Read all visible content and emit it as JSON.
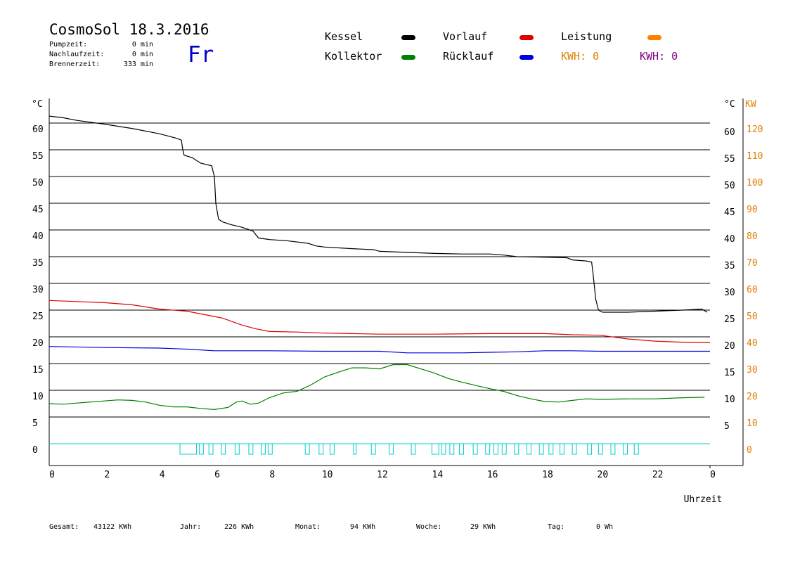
{
  "header": {
    "title": "CosmoSol 18.3.2016",
    "day": "Fr",
    "stats": [
      {
        "label": "Pumpzeit:",
        "value": "0 min"
      },
      {
        "label": "Nachlaufzeit:",
        "value": "0 min"
      },
      {
        "label": "Brennerzeit:",
        "value": "333 min"
      }
    ]
  },
  "legend": {
    "kessel": {
      "label": "Kessel",
      "color": "#000000"
    },
    "kollektor": {
      "label": "Kollektor",
      "color": "#008000"
    },
    "vorlauf": {
      "label": "Vorlauf",
      "color": "#dd0000"
    },
    "ruecklauf": {
      "label": "Rücklauf",
      "color": "#0000dd"
    },
    "leistung": {
      "label": "Leistung",
      "color": "#ff8000"
    },
    "kwh1": {
      "label": "KWH: 0",
      "color": "#e08000"
    },
    "kwh2": {
      "label": "KWH: 0",
      "color": "#800080"
    }
  },
  "footer": [
    {
      "label": "Gesamt:",
      "value": "43122 KWh"
    },
    {
      "label": "Jahr:",
      "value": "226 KWh"
    },
    {
      "label": "Monat:",
      "value": "94 KWh"
    },
    {
      "label": "Woche:",
      "value": "29 KWh"
    },
    {
      "label": "Tag:",
      "value": "0 Wh"
    }
  ],
  "chart_data": {
    "type": "line",
    "xlabel": "Uhrzeit",
    "ylabel_left": "°C",
    "ylabel_right_temp": "°C",
    "ylabel_right_power": "KW",
    "x_ticks": [
      "0",
      "2",
      "4",
      "6",
      "8",
      "10",
      "12",
      "14",
      "16",
      "18",
      "20",
      "22",
      "0"
    ],
    "y_ticks_left": [
      0,
      5,
      10,
      15,
      20,
      25,
      30,
      35,
      40,
      45,
      50,
      55,
      60
    ],
    "y_ticks_right_temp": [
      5,
      10,
      15,
      20,
      25,
      30,
      35,
      40,
      45,
      50,
      55,
      60
    ],
    "y_ticks_right_power": [
      0,
      10,
      20,
      30,
      40,
      50,
      60,
      70,
      80,
      90,
      100,
      110,
      120
    ],
    "xlim": [
      0,
      24
    ],
    "ylim": [
      -4,
      65
    ],
    "grid": "horizontal",
    "series": [
      {
        "name": "Kessel",
        "color": "#000000",
        "points": [
          [
            0,
            61.3
          ],
          [
            0.5,
            61
          ],
          [
            1,
            60.5
          ],
          [
            2,
            59.8
          ],
          [
            3,
            59
          ],
          [
            4,
            58
          ],
          [
            4.6,
            57.2
          ],
          [
            4.8,
            56.8
          ],
          [
            4.85,
            55
          ],
          [
            4.9,
            54
          ],
          [
            5.2,
            53.5
          ],
          [
            5.5,
            52.5
          ],
          [
            5.9,
            52
          ],
          [
            6.0,
            50
          ],
          [
            6.05,
            45
          ],
          [
            6.15,
            42
          ],
          [
            6.3,
            41.5
          ],
          [
            6.6,
            41
          ],
          [
            7.0,
            40.5
          ],
          [
            7.4,
            39.8
          ],
          [
            7.6,
            38.5
          ],
          [
            8,
            38.2
          ],
          [
            8.6,
            38
          ],
          [
            9.4,
            37.5
          ],
          [
            9.7,
            37
          ],
          [
            10,
            36.8
          ],
          [
            11,
            36.5
          ],
          [
            11.8,
            36.3
          ],
          [
            12,
            36
          ],
          [
            13,
            35.8
          ],
          [
            14,
            35.6
          ],
          [
            15,
            35.5
          ],
          [
            16,
            35.5
          ],
          [
            16.5,
            35.3
          ],
          [
            17,
            35
          ],
          [
            18,
            34.9
          ],
          [
            18.8,
            34.8
          ],
          [
            19,
            34.4
          ],
          [
            19.5,
            34.2
          ],
          [
            19.7,
            34
          ],
          [
            19.75,
            32
          ],
          [
            19.85,
            27
          ],
          [
            19.95,
            25
          ],
          [
            20.1,
            24.6
          ],
          [
            21,
            24.6
          ],
          [
            22,
            24.8
          ],
          [
            23,
            25
          ],
          [
            23.7,
            25.2
          ],
          [
            23.9,
            24.6
          ]
        ]
      },
      {
        "name": "Vorlauf",
        "color": "#dd0000",
        "points": [
          [
            0,
            26.8
          ],
          [
            1,
            26.6
          ],
          [
            2,
            26.4
          ],
          [
            3,
            26
          ],
          [
            4,
            25.2
          ],
          [
            5,
            24.8
          ],
          [
            6,
            23.8
          ],
          [
            6.3,
            23.5
          ],
          [
            7,
            22.2
          ],
          [
            7.5,
            21.5
          ],
          [
            8,
            21
          ],
          [
            9,
            20.9
          ],
          [
            10,
            20.7
          ],
          [
            11,
            20.6
          ],
          [
            12,
            20.5
          ],
          [
            14,
            20.5
          ],
          [
            16,
            20.6
          ],
          [
            18,
            20.6
          ],
          [
            19,
            20.4
          ],
          [
            20,
            20.3
          ],
          [
            21,
            19.6
          ],
          [
            22,
            19.2
          ],
          [
            23,
            19
          ],
          [
            24,
            18.9
          ]
        ]
      },
      {
        "name": "Rücklauf",
        "color": "#0000dd",
        "points": [
          [
            0,
            18.2
          ],
          [
            2,
            18
          ],
          [
            4,
            17.9
          ],
          [
            5,
            17.7
          ],
          [
            6,
            17.4
          ],
          [
            8,
            17.4
          ],
          [
            10,
            17.3
          ],
          [
            12,
            17.3
          ],
          [
            13,
            17
          ],
          [
            14,
            17
          ],
          [
            15,
            17
          ],
          [
            16,
            17.1
          ],
          [
            17,
            17.2
          ],
          [
            18,
            17.4
          ],
          [
            19,
            17.4
          ],
          [
            20,
            17.3
          ],
          [
            22,
            17.3
          ],
          [
            24,
            17.3
          ]
        ]
      },
      {
        "name": "Kollektor",
        "color": "#008000",
        "points": [
          [
            0,
            7.5
          ],
          [
            0.5,
            7.4
          ],
          [
            1,
            7.6
          ],
          [
            1.5,
            7.8
          ],
          [
            2,
            8
          ],
          [
            2.5,
            8.2
          ],
          [
            3,
            8.1
          ],
          [
            3.5,
            7.8
          ],
          [
            4,
            7.2
          ],
          [
            4.5,
            6.9
          ],
          [
            5,
            6.9
          ],
          [
            5.5,
            6.6
          ],
          [
            6,
            6.4
          ],
          [
            6.5,
            6.8
          ],
          [
            6.8,
            7.8
          ],
          [
            7,
            8
          ],
          [
            7.3,
            7.4
          ],
          [
            7.6,
            7.6
          ],
          [
            8,
            8.6
          ],
          [
            8.5,
            9.5
          ],
          [
            9,
            9.8
          ],
          [
            9.5,
            11
          ],
          [
            10,
            12.5
          ],
          [
            10.5,
            13.4
          ],
          [
            11,
            14.2
          ],
          [
            11.5,
            14.2
          ],
          [
            12,
            14
          ],
          [
            12.5,
            14.8
          ],
          [
            13,
            14.8
          ],
          [
            13.5,
            14
          ],
          [
            14,
            13.2
          ],
          [
            14.5,
            12.2
          ],
          [
            15,
            11.5
          ],
          [
            15.5,
            10.9
          ],
          [
            16,
            10.3
          ],
          [
            16.5,
            9.8
          ],
          [
            17,
            9
          ],
          [
            17.5,
            8.4
          ],
          [
            18,
            7.9
          ],
          [
            18.5,
            7.8
          ],
          [
            19,
            8.1
          ],
          [
            19.5,
            8.4
          ],
          [
            20,
            8.3
          ],
          [
            21,
            8.4
          ],
          [
            22,
            8.4
          ],
          [
            23,
            8.6
          ],
          [
            23.8,
            8.7
          ]
        ]
      }
    ],
    "markers": {
      "color": "#00cccc",
      "baseline": 0,
      "blocks": [
        [
          4.75,
          5.35
        ],
        [
          5.45,
          5.6
        ],
        [
          5.8,
          5.95
        ],
        [
          6.25,
          6.4
        ],
        [
          6.75,
          6.9
        ],
        [
          7.25,
          7.4
        ],
        [
          7.7,
          7.85
        ],
        [
          7.95,
          8.1
        ],
        [
          9.3,
          9.45
        ],
        [
          9.8,
          9.95
        ],
        [
          10.2,
          10.35
        ],
        [
          11.05,
          11.15
        ],
        [
          11.7,
          11.85
        ],
        [
          12.35,
          12.5
        ],
        [
          13.15,
          13.3
        ],
        [
          13.9,
          14.15
        ],
        [
          14.25,
          14.4
        ],
        [
          14.55,
          14.7
        ],
        [
          14.9,
          15.05
        ],
        [
          15.4,
          15.55
        ],
        [
          15.85,
          16
        ],
        [
          16.15,
          16.3
        ],
        [
          16.45,
          16.6
        ],
        [
          16.9,
          17.05
        ],
        [
          17.35,
          17.5
        ],
        [
          17.8,
          17.95
        ],
        [
          18.15,
          18.3
        ],
        [
          18.55,
          18.7
        ],
        [
          19.0,
          19.15
        ],
        [
          19.55,
          19.7
        ],
        [
          19.95,
          20.1
        ],
        [
          20.4,
          20.55
        ],
        [
          20.85,
          21.0
        ],
        [
          21.25,
          21.4
        ]
      ]
    }
  }
}
